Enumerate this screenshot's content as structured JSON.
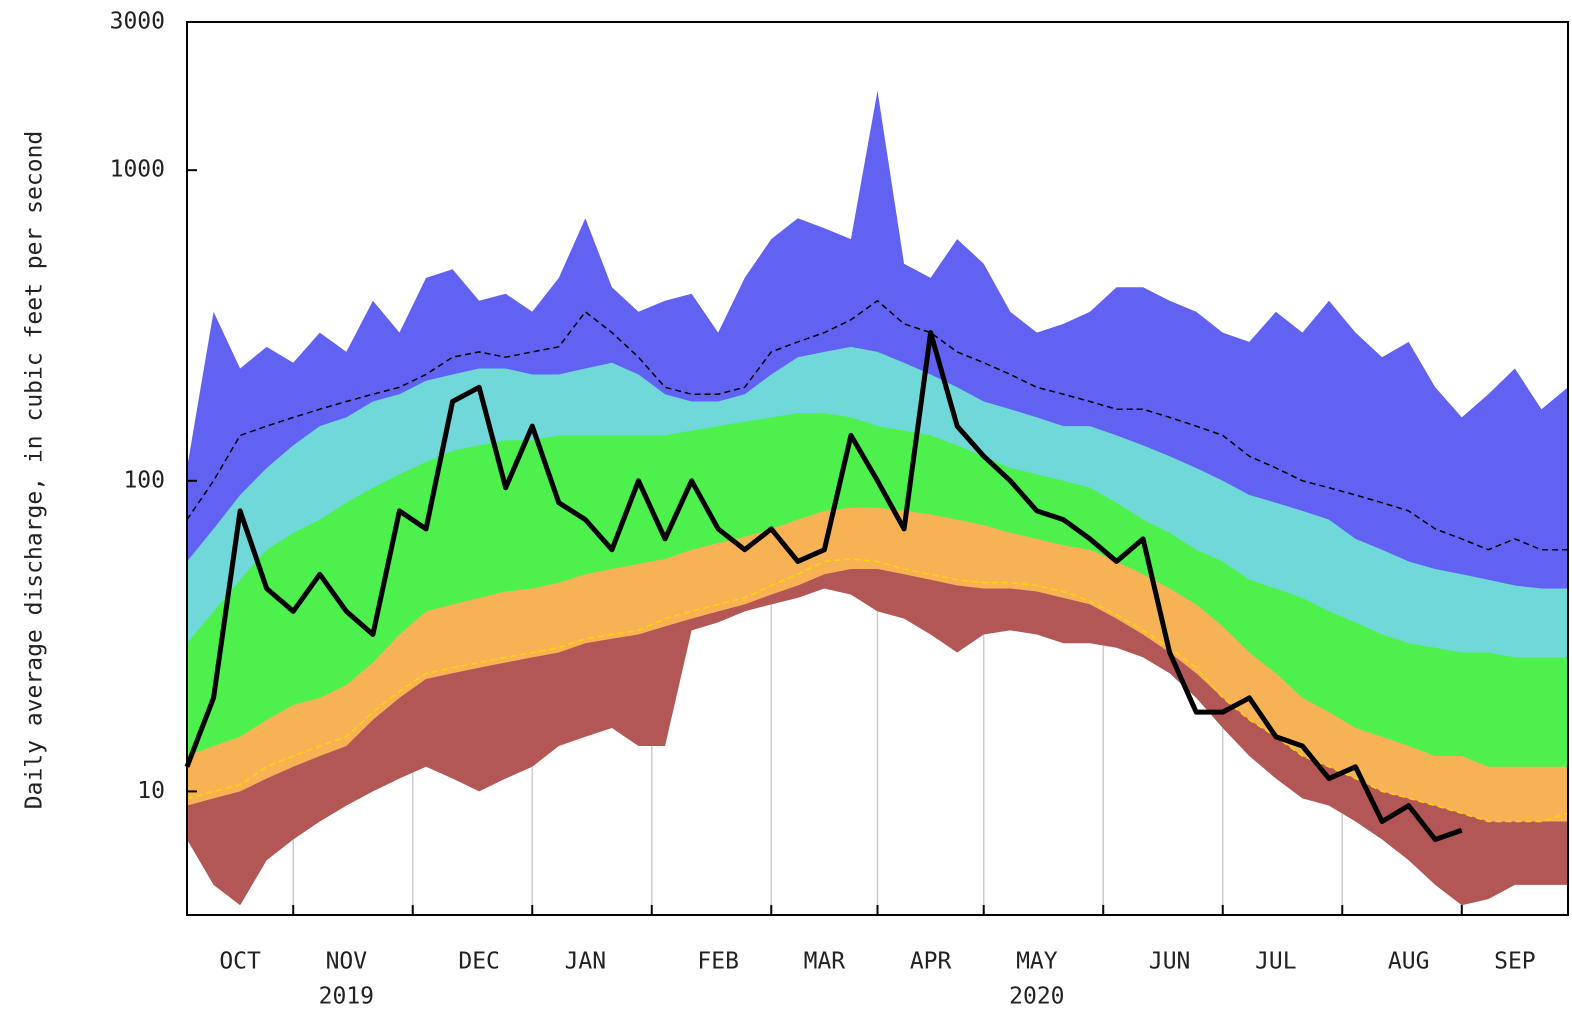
{
  "chart_data": {
    "type": "line",
    "y_label": "Daily average discharge, in cubic feet per second",
    "log_y": true,
    "ylim": [
      4,
      3000
    ],
    "yticks": [
      10,
      100,
      1000,
      3000
    ],
    "grid": true,
    "categories": [
      null,
      null,
      "OCT",
      null,
      null,
      null,
      "NOV",
      null,
      null,
      null,
      null,
      "DEC",
      null,
      null,
      null,
      "JAN",
      null,
      null,
      null,
      null,
      "FEB",
      null,
      null,
      null,
      "MAR",
      null,
      null,
      null,
      "APR",
      null,
      null,
      null,
      "MAY",
      null,
      null,
      null,
      null,
      "JUN",
      null,
      null,
      null,
      "JUL",
      null,
      null,
      null,
      null,
      "AUG",
      null,
      null,
      null,
      "SEP",
      null,
      null
    ],
    "category_years": [
      null,
      null,
      null,
      null,
      null,
      null,
      "2019",
      null,
      null,
      null,
      null,
      null,
      null,
      null,
      null,
      null,
      null,
      null,
      null,
      null,
      null,
      null,
      null,
      null,
      null,
      null,
      null,
      null,
      null,
      null,
      null,
      null,
      "2020",
      null,
      null,
      null,
      null,
      null,
      null,
      null,
      null,
      null,
      null,
      null,
      null,
      null,
      null,
      null,
      null,
      null,
      null,
      null,
      null
    ],
    "series": [
      {
        "color": "#6262f2",
        "fill": true,
        "values": [
          110,
          350,
          230,
          270,
          240,
          300,
          260,
          380,
          300,
          450,
          480,
          380,
          400,
          350,
          450,
          700,
          420,
          350,
          380,
          400,
          300,
          450,
          600,
          700,
          650,
          600,
          1800,
          500,
          450,
          600,
          500,
          350,
          300,
          320,
          350,
          420,
          420,
          380,
          350,
          300,
          280,
          350,
          300,
          380,
          300,
          250,
          280,
          200,
          160,
          190,
          230,
          170,
          200
        ]
      },
      {
        "color": "#70d8d8",
        "fill": true,
        "values": [
          55,
          70,
          90,
          110,
          130,
          150,
          160,
          180,
          190,
          210,
          220,
          230,
          230,
          220,
          220,
          230,
          240,
          220,
          190,
          180,
          180,
          190,
          220,
          250,
          260,
          270,
          260,
          240,
          220,
          200,
          180,
          170,
          160,
          150,
          150,
          140,
          130,
          120,
          110,
          100,
          90,
          85,
          80,
          75,
          65,
          60,
          55,
          52,
          50,
          48,
          46,
          45,
          45
        ]
      },
      {
        "color": "#4ef04e",
        "fill": true,
        "values": [
          30,
          38,
          48,
          60,
          68,
          75,
          85,
          95,
          105,
          115,
          125,
          130,
          135,
          135,
          140,
          140,
          140,
          140,
          140,
          145,
          150,
          155,
          160,
          165,
          165,
          160,
          150,
          145,
          140,
          130,
          120,
          110,
          105,
          100,
          95,
          85,
          75,
          68,
          60,
          55,
          48,
          45,
          42,
          38,
          35,
          32,
          30,
          29,
          28,
          28,
          27,
          27,
          27
        ]
      },
      {
        "color": "#f8b256",
        "fill": true,
        "values": [
          13,
          14,
          15,
          17,
          19,
          20,
          22,
          26,
          32,
          38,
          40,
          42,
          44,
          45,
          47,
          50,
          52,
          54,
          56,
          60,
          63,
          66,
          70,
          75,
          80,
          82,
          82,
          80,
          78,
          75,
          72,
          68,
          65,
          62,
          60,
          55,
          50,
          45,
          40,
          34,
          28,
          24,
          20,
          18,
          16,
          15,
          14,
          13,
          13,
          12,
          12,
          12,
          12
        ]
      },
      {
        "color": "#b25656",
        "fill": true,
        "values": [
          9,
          9.5,
          10,
          11,
          12,
          13,
          14,
          17,
          20,
          23,
          24,
          25,
          26,
          27,
          28,
          30,
          31,
          32,
          34,
          36,
          38,
          40,
          43,
          46,
          50,
          52,
          52,
          50,
          48,
          46,
          45,
          45,
          44,
          42,
          40,
          36,
          32,
          28,
          24,
          20,
          17,
          15,
          13,
          12,
          11,
          10,
          9.5,
          9,
          8.5,
          8,
          8,
          8,
          8
        ]
      },
      {
        "color": "#ffffff",
        "fill": true,
        "values": [
          7,
          5,
          4.3,
          6,
          7,
          8,
          9,
          10,
          11,
          12,
          11,
          10,
          11,
          12,
          14,
          15,
          16,
          14,
          14,
          33,
          35,
          38,
          40,
          42,
          45,
          43,
          38,
          36,
          32,
          28,
          32,
          33,
          32,
          30,
          30,
          29,
          27,
          24,
          20,
          16,
          13,
          11,
          9.5,
          9,
          8,
          7,
          6,
          5,
          4.3,
          4.5,
          5,
          5,
          5
        ]
      },
      {
        "color": "#ffd700",
        "dash": true,
        "width": 1.5,
        "values": [
          9.5,
          10,
          10.5,
          12,
          13,
          14,
          15,
          18,
          21,
          24,
          25,
          26,
          27,
          28,
          29,
          31,
          32,
          33,
          36,
          38,
          40,
          42,
          46,
          50,
          55,
          56,
          55,
          52,
          50,
          48,
          47,
          47,
          46,
          44,
          41,
          37,
          33,
          29,
          25,
          20,
          17,
          15,
          13,
          12,
          11,
          10,
          9.5,
          9,
          8.5,
          8,
          8,
          8,
          8.5
        ]
      },
      {
        "color": "#000000",
        "dash": true,
        "width": 1.5,
        "values": [
          75,
          100,
          140,
          150,
          160,
          170,
          180,
          190,
          200,
          220,
          250,
          260,
          250,
          260,
          270,
          350,
          300,
          250,
          200,
          190,
          190,
          200,
          260,
          280,
          300,
          330,
          380,
          320,
          300,
          260,
          240,
          220,
          200,
          190,
          180,
          170,
          170,
          160,
          150,
          140,
          120,
          110,
          100,
          95,
          90,
          85,
          80,
          70,
          65,
          60,
          65,
          60,
          60
        ]
      },
      {
        "color": "#000000",
        "width": 5,
        "values": [
          12,
          20,
          80,
          45,
          38,
          50,
          38,
          32,
          80,
          70,
          180,
          200,
          95,
          150,
          85,
          75,
          60,
          100,
          65,
          100,
          70,
          60,
          70,
          55,
          60,
          140,
          100,
          70,
          300,
          150,
          120,
          100,
          80,
          75,
          65,
          55,
          65,
          28,
          18,
          18,
          20,
          15,
          14,
          11,
          12,
          8,
          9,
          7,
          7.5,
          null,
          null,
          null,
          null
        ]
      }
    ]
  }
}
